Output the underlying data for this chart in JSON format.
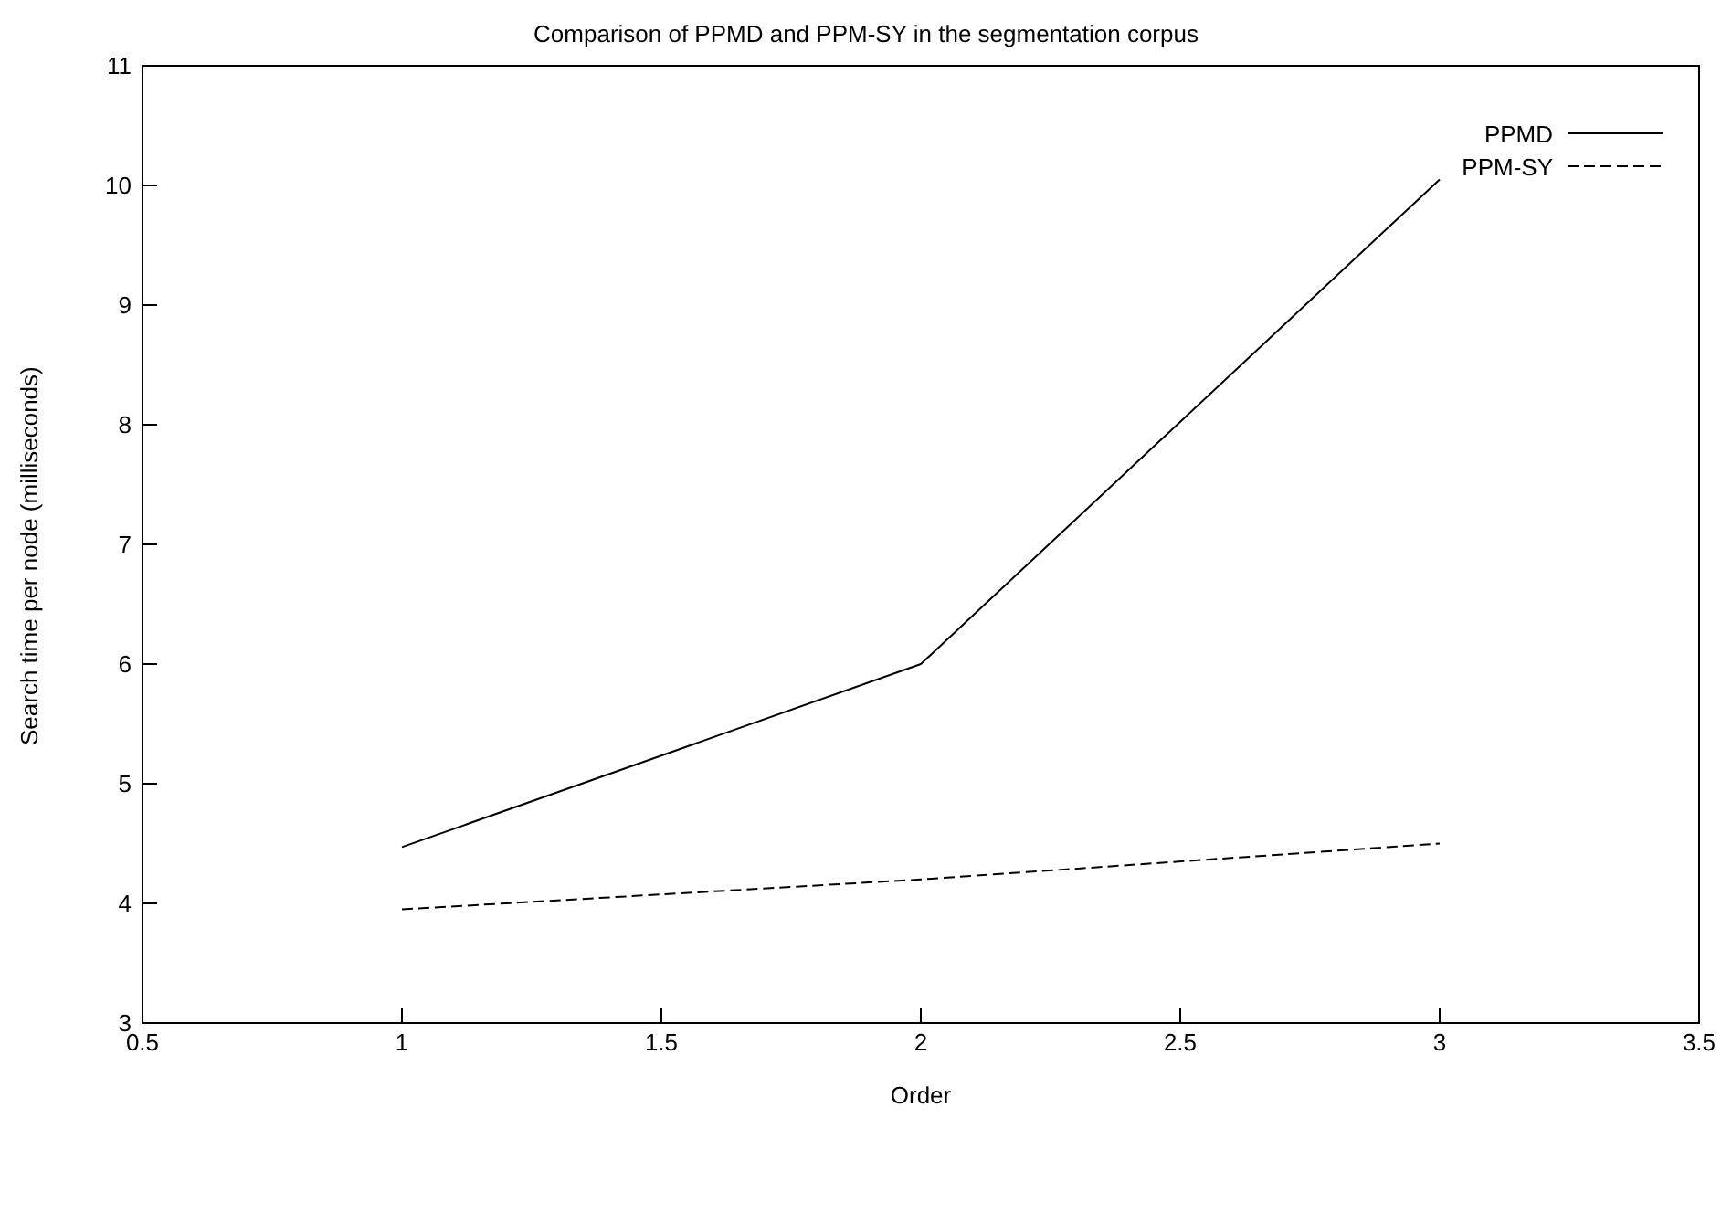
{
  "chart_data": {
    "type": "line",
    "title": "Comparison of PPMD and PPM-SY in the segmentation corpus",
    "xlabel": "Order",
    "ylabel": "Search time per node (milliseconds)",
    "x": [
      1,
      2,
      3
    ],
    "series": [
      {
        "name": "PPMD",
        "color": "#000000",
        "values": [
          4.47,
          6.0,
          10.05
        ],
        "line_style": "solid"
      },
      {
        "name": "PPM-SY",
        "color": "#000000",
        "values": [
          3.95,
          4.2,
          4.5
        ],
        "line_style": "dashed"
      }
    ],
    "xlim": [
      0.5,
      3.5
    ],
    "xticks": [
      0.5,
      1,
      1.5,
      2,
      2.5,
      3,
      3.5
    ],
    "ylim": [
      3,
      11
    ],
    "yticks": [
      3,
      4,
      5,
      6,
      7,
      8,
      9,
      10,
      11
    ],
    "grid": false,
    "legend": "top right",
    "marker": "none"
  }
}
